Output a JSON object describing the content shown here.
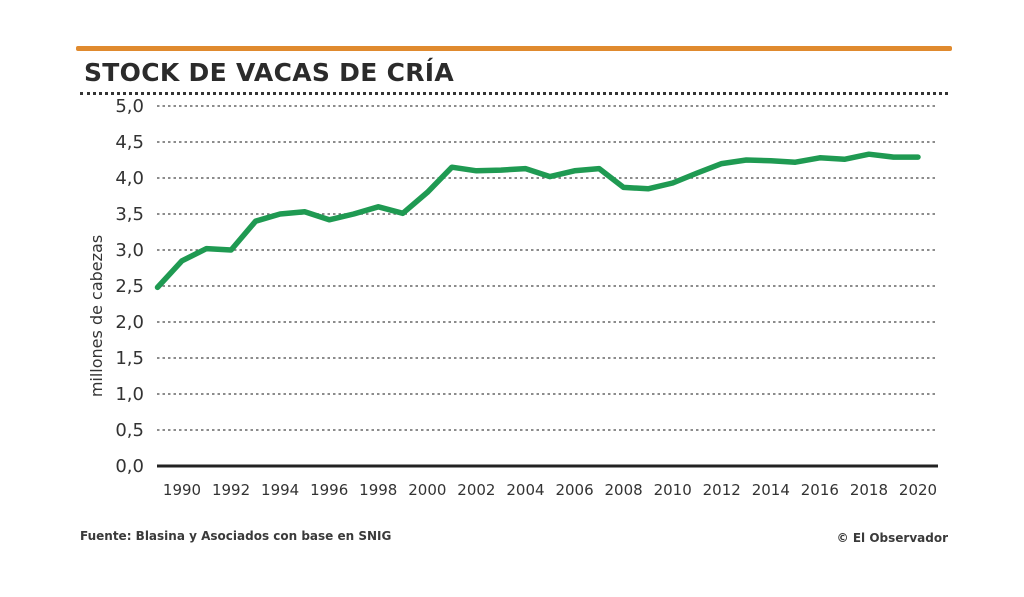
{
  "header": {
    "title": "STOCK DE VACAS DE CRÍA"
  },
  "footer": {
    "source": "Fuente: Blasina y Asociados con base en SNIG",
    "credit": "© El Observador"
  },
  "colors": {
    "accent": "#e08a2e",
    "line": "#1f9a52",
    "grid": "#666666",
    "axis": "#222222"
  },
  "chart_data": {
    "type": "line",
    "title": "STOCK DE VACAS DE CRÍA",
    "xlabel": "",
    "ylabel": "millones de cabezas",
    "ylim": [
      0,
      5
    ],
    "yticks": [
      "0,0",
      "0,5",
      "1,0",
      "1,5",
      "2,0",
      "2,5",
      "3,0",
      "3,5",
      "4,0",
      "4,5",
      "5,0"
    ],
    "xticks": [
      "1990",
      "1992",
      "1994",
      "1996",
      "1998",
      "2000",
      "2002",
      "2004",
      "2006",
      "2008",
      "2010",
      "2012",
      "2014",
      "2016",
      "2018",
      "2020"
    ],
    "grid": true,
    "series": [
      {
        "name": "Stock de vacas de cría",
        "x": [
          1989,
          1990,
          1991,
          1992,
          1993,
          1994,
          1995,
          1996,
          1997,
          1998,
          1999,
          2000,
          2001,
          2002,
          2003,
          2004,
          2005,
          2006,
          2007,
          2008,
          2009,
          2010,
          2011,
          2012,
          2013,
          2014,
          2015,
          2016,
          2017,
          2018,
          2019,
          2020
        ],
        "values": [
          2.48,
          2.85,
          3.02,
          3.0,
          3.4,
          3.5,
          3.53,
          3.42,
          3.5,
          3.6,
          3.51,
          3.8,
          4.15,
          4.1,
          4.11,
          4.13,
          4.02,
          4.1,
          4.13,
          3.87,
          3.85,
          3.93,
          4.07,
          4.2,
          4.25,
          4.24,
          4.22,
          4.28,
          4.26,
          4.33,
          4.29,
          4.29
        ]
      }
    ]
  }
}
